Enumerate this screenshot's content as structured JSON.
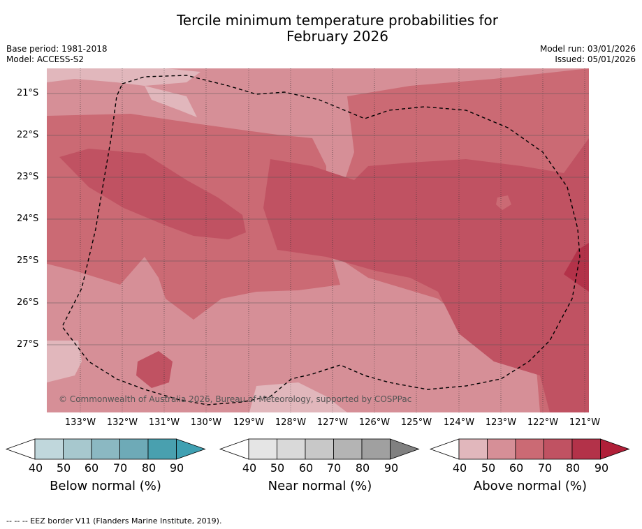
{
  "title_line1": "Tercile minimum temperature probabilities for",
  "title_line2": "February 2026",
  "meta_left": {
    "base_period": "Base period: 1981-2018",
    "model": "Model: ACCESS-S2"
  },
  "meta_right": {
    "model_run": "Model run: 03/01/2026",
    "issued": "Issued: 05/01/2026"
  },
  "copyright": "© Commonwealth of Australia 2026, Bureau of Meteorology, supported by COSPPac",
  "lat_labels": [
    "21°S",
    "22°S",
    "23°S",
    "24°S",
    "25°S",
    "26°S",
    "27°S"
  ],
  "lon_labels": [
    "133°W",
    "132°W",
    "131°W",
    "130°W",
    "129°W",
    "128°W",
    "127°W",
    "126°W",
    "125°W",
    "124°W",
    "123°W",
    "122°W",
    "121°W"
  ],
  "colorbars": [
    {
      "label": "Below normal (%)",
      "ticks": [
        "40",
        "50",
        "60",
        "70",
        "80",
        "90"
      ],
      "colors": [
        "#c0d7dc",
        "#a7c8ce",
        "#8bb8c2",
        "#6eaab7",
        "#49a0af",
        "#3fa0b2"
      ]
    },
    {
      "label": "Near normal (%)",
      "ticks": [
        "40",
        "50",
        "60",
        "70",
        "80",
        "90"
      ],
      "colors": [
        "#e5e5e5",
        "#d9d9d9",
        "#c8c8c8",
        "#b4b4b4",
        "#a0a0a0",
        "#808080"
      ]
    },
    {
      "label": "Above normal (%)",
      "ticks": [
        "40",
        "50",
        "60",
        "70",
        "80",
        "90"
      ],
      "colors": [
        "#e1b7bc",
        "#d68f97",
        "#cb6a74",
        "#c05262",
        "#b33249",
        "#b01f38"
      ]
    }
  ],
  "footer": "--  --  -- EEZ border V11 (Flanders Marine Institute, 2019)."
}
